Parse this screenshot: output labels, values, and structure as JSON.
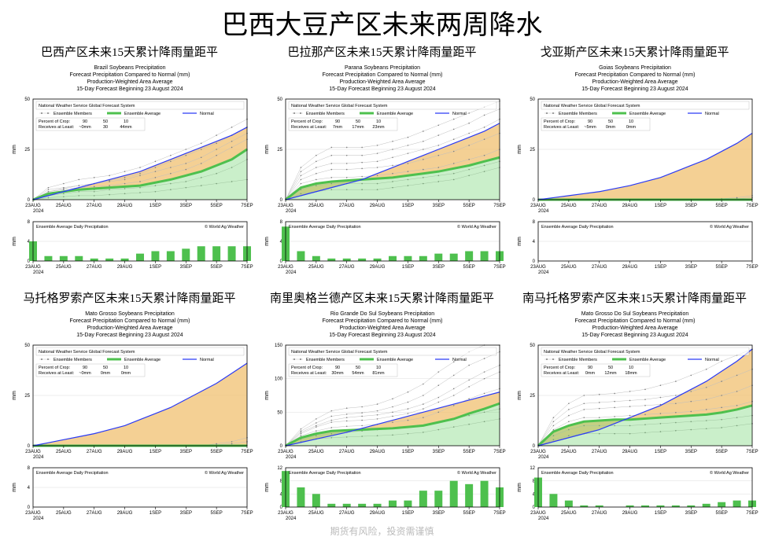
{
  "main_title": "巴西大豆产区未来两周降水",
  "watermark": "期货有风险，投资需谨慎",
  "x_ticks": [
    "23AUG",
    "25AUG",
    "27AUG",
    "29AUG",
    "1SEP",
    "3SEP",
    "5SEP",
    "7SEP"
  ],
  "x_year": "2024",
  "colors": {
    "ens": "#bfbfbf",
    "avg": "#4ec04e",
    "norm": "#2a3af5",
    "anom": "#f0c070",
    "bar": "#4ec04e"
  },
  "legend": {
    "source": "National Weather Service Global Forecast System",
    "members": "Ensemble Members",
    "avg": "Ensemble Average",
    "norm": "Normal",
    "pct_hdr": "Percent of Crop:",
    "rec_hdr": "Receives at Least:"
  },
  "daily_label": "Ensemble Average Daily Precipitation",
  "credit": "© World Ag Weather",
  "panels": [
    {
      "cn": "巴西产区未来15天累计降雨量距平",
      "hdr": [
        "Brazil Soybeans Precipitation",
        "Forecast Precipitation Compared to Normal (mm)",
        "Production-Weighted Area Average",
        "15-Day Forecast Beginning 23 August 2024"
      ],
      "ymax": 50,
      "ystep": 25,
      "norm": [
        0,
        2,
        4,
        6,
        8,
        10,
        12,
        14,
        17,
        20,
        23,
        26,
        29,
        32,
        36
      ],
      "avg": [
        0,
        3,
        4,
        5,
        5.5,
        6,
        6.5,
        7,
        8.5,
        10,
        12,
        14,
        17,
        20,
        25
      ],
      "ens": [
        [
          0,
          1,
          1.5,
          2,
          2,
          2.5,
          3,
          3.5,
          4,
          5,
          6,
          7,
          8,
          9,
          10
        ],
        [
          0,
          2,
          3,
          4,
          4,
          5,
          5.5,
          6,
          7,
          8,
          9,
          11,
          13,
          16,
          20
        ],
        [
          0,
          3,
          4,
          5,
          5,
          6,
          6.5,
          7,
          8.5,
          10,
          12,
          14,
          17,
          20,
          25
        ],
        [
          0,
          4,
          5,
          6,
          6.5,
          7,
          8,
          9,
          11,
          13,
          15,
          18,
          22,
          26,
          30
        ],
        [
          0,
          5,
          6,
          7,
          8,
          9,
          10,
          12,
          14,
          16,
          18,
          21,
          25,
          29,
          33
        ],
        [
          0,
          4,
          5.5,
          7,
          8,
          9.5,
          11,
          13,
          16,
          19,
          22,
          25,
          28,
          32,
          36
        ],
        [
          0,
          6,
          8,
          10,
          11,
          12,
          14,
          16,
          19,
          22,
          25,
          28,
          32,
          36,
          40
        ]
      ],
      "pct": [
        "90",
        "50",
        "10"
      ],
      "rec": [
        "~0mm",
        "30",
        "44mm"
      ],
      "daily_max": 8,
      "daily": [
        4,
        1,
        1,
        1,
        0.5,
        0.5,
        0.5,
        1.5,
        2,
        2,
        2.5,
        3,
        3,
        3,
        3
      ]
    },
    {
      "cn": "巴拉那产区未来15天累计降雨量距平",
      "hdr": [
        "Parana Soybeans Precipitation",
        "Forecast Precipitation Compared to Normal (mm)",
        "Production-Weighted Area Average",
        "15-Day Forecast Beginning 23 August 2024"
      ],
      "ymax": 50,
      "ystep": 25,
      "norm": [
        0,
        2,
        4,
        6,
        8,
        10,
        13,
        16,
        19,
        22,
        25,
        28,
        31,
        34,
        38
      ],
      "avg": [
        0,
        6,
        8,
        9,
        9.5,
        10,
        10.5,
        11,
        12,
        13,
        14,
        15.5,
        17,
        19,
        21
      ],
      "ens": [
        [
          0,
          3,
          4,
          5,
          5,
          5,
          5,
          6,
          7,
          8,
          9,
          10,
          12,
          14,
          16
        ],
        [
          0,
          5,
          7,
          8,
          8,
          8,
          8,
          9,
          10,
          11,
          12,
          13,
          15,
          17,
          19
        ],
        [
          0,
          8,
          10,
          11,
          11,
          11.5,
          12,
          13,
          14,
          15,
          16,
          18,
          20,
          22,
          25
        ],
        [
          0,
          10,
          13,
          15,
          15,
          15.5,
          16,
          17,
          18,
          20,
          22,
          24,
          27,
          30,
          33
        ],
        [
          0,
          12,
          16,
          18,
          18,
          18.5,
          19,
          21,
          23,
          25,
          27,
          30,
          33,
          36,
          40
        ],
        [
          0,
          14,
          19,
          22,
          22,
          22,
          23,
          25,
          27,
          29,
          32,
          35,
          38,
          42,
          45
        ],
        [
          0,
          16,
          22,
          26,
          26,
          26,
          27,
          29,
          31,
          34,
          37,
          40,
          43,
          46,
          49
        ]
      ],
      "pct": [
        "90",
        "50",
        "10"
      ],
      "rec": [
        "7mm",
        "17mm",
        "23mm"
      ],
      "daily_max": 8,
      "daily": [
        7,
        2,
        1,
        0.5,
        0.5,
        0.5,
        0.5,
        1,
        1,
        1,
        1.5,
        1.5,
        2,
        2,
        2
      ]
    },
    {
      "cn": "戈亚斯产区未来15天累计降雨量距平",
      "hdr": [
        "Goias Soybeans Precipitation",
        "Forecast Precipitation Compared to Normal (mm)",
        "Production-Weighted Area Average",
        "15-Day Forecast Beginning 23 August 2024"
      ],
      "ymax": 50,
      "ystep": 25,
      "norm": [
        0,
        1,
        2,
        3,
        4,
        5.5,
        7,
        9,
        11,
        14,
        17,
        20,
        24,
        28,
        33
      ],
      "avg": [
        0,
        0,
        0,
        0,
        0,
        0,
        0,
        0,
        0,
        0,
        0,
        0,
        0,
        0,
        0
      ],
      "ens": [
        [
          0,
          0,
          0,
          0,
          0,
          0,
          0,
          0,
          0,
          0,
          0,
          0,
          0,
          0,
          0
        ],
        [
          0,
          0,
          0,
          0,
          0,
          0,
          0,
          0,
          0,
          0,
          0,
          0,
          0,
          0.5,
          1
        ],
        [
          0,
          0,
          0,
          0,
          0,
          0,
          0,
          0,
          0,
          0,
          0,
          0,
          0.5,
          1,
          2
        ]
      ],
      "pct": [
        "90",
        "50",
        "10"
      ],
      "rec": [
        "~5mm",
        "0mm",
        "0mm"
      ],
      "daily_max": 8,
      "daily": [
        0,
        0,
        0,
        0,
        0,
        0,
        0,
        0,
        0,
        0,
        0,
        0,
        0,
        0,
        0
      ]
    },
    {
      "cn": "马托格罗索产区未来15天累计降雨量距平",
      "hdr": [
        "Mato Grosso Soybeans Precipitation",
        "Forecast Precipitation Compared to Normal (mm)",
        "Production-Weighted Area Average",
        "15-Day Forecast Beginning 23 August 2024"
      ],
      "ymax": 50,
      "ystep": 25,
      "norm": [
        0,
        1.5,
        3,
        4.5,
        6,
        8,
        10,
        13,
        16,
        19,
        23,
        27,
        31,
        36,
        41
      ],
      "avg": [
        0,
        0,
        0,
        0,
        0,
        0,
        0,
        0,
        0,
        0,
        0,
        0,
        0,
        0,
        0
      ],
      "ens": [
        [
          0,
          0,
          0,
          0,
          0,
          0,
          0,
          0,
          0,
          0,
          0,
          0,
          0,
          0,
          0
        ],
        [
          0,
          0,
          0,
          0,
          0,
          0,
          0,
          0,
          0,
          0,
          0,
          0,
          0.5,
          1,
          2
        ],
        [
          0,
          0,
          0,
          0,
          0,
          0,
          0,
          0,
          0,
          0,
          0,
          0,
          1,
          2,
          4
        ]
      ],
      "pct": [
        "90",
        "50",
        "10"
      ],
      "rec": [
        "~0mm",
        "0mm",
        "0mm"
      ],
      "daily_max": 8,
      "daily": [
        0,
        0,
        0,
        0,
        0,
        0,
        0,
        0,
        0,
        0,
        0,
        0,
        0,
        0,
        0
      ]
    },
    {
      "cn": "南里奥格兰德产区未来15天累计降雨量距平",
      "hdr": [
        "Rio Grande Do Sul Soybeans Precipitation",
        "Forecast Precipitation Compared to Normal (mm)",
        "Production-Weighted Area Average",
        "15-Day Forecast Beginning 23 August 2024"
      ],
      "ymax": 150,
      "ystep": 50,
      "norm": [
        0,
        5,
        10,
        15,
        20,
        26,
        32,
        38,
        44,
        50,
        56,
        62,
        68,
        74,
        80
      ],
      "avg": [
        0,
        12,
        18,
        22,
        23,
        24,
        25,
        26,
        28,
        30,
        35,
        40,
        48,
        55,
        63
      ],
      "ens": [
        [
          0,
          6,
          10,
          12,
          13,
          14,
          15,
          16,
          18,
          20,
          24,
          28,
          32,
          36,
          40
        ],
        [
          0,
          10,
          15,
          18,
          20,
          22,
          24,
          26,
          28,
          30,
          35,
          40,
          45,
          50,
          55
        ],
        [
          0,
          15,
          22,
          27,
          29,
          30,
          32,
          35,
          38,
          42,
          50,
          60,
          70,
          78,
          85
        ],
        [
          0,
          18,
          28,
          35,
          37,
          38,
          40,
          44,
          48,
          55,
          65,
          75,
          88,
          100,
          110
        ],
        [
          0,
          22,
          34,
          44,
          47,
          49,
          52,
          58,
          65,
          75,
          90,
          105,
          120,
          130,
          140
        ],
        [
          0,
          25,
          40,
          52,
          56,
          58,
          62,
          70,
          80,
          92,
          110,
          125,
          140,
          150,
          150
        ],
        [
          0,
          20,
          30,
          38,
          42,
          44,
          46,
          50,
          55,
          62,
          72,
          85,
          98,
          110,
          120
        ]
      ],
      "pct": [
        "90",
        "50",
        "10"
      ],
      "rec": [
        "30mm",
        "54mm",
        "81mm"
      ],
      "daily_max": 12,
      "daily": [
        11,
        6,
        4,
        1,
        1,
        1,
        1,
        2,
        2,
        5,
        5,
        8,
        7,
        8,
        6
      ]
    },
    {
      "cn": "南马托格罗索产区未来15天累计降雨量距平",
      "hdr": [
        "Mato Grosso Do Sul Soybeans Precipitation",
        "Forecast Precipitation Compared to Normal (mm)",
        "Production-Weighted Area Average",
        "15-Day Forecast Beginning 23 August 2024"
      ],
      "ymax": 50,
      "ystep": 25,
      "norm": [
        0,
        2,
        4,
        6,
        8,
        11,
        14,
        17,
        20,
        24,
        28,
        32,
        37,
        42,
        48
      ],
      "avg": [
        0,
        7,
        10,
        12,
        12.5,
        13,
        13,
        13.5,
        14,
        14.5,
        15,
        15.5,
        16.5,
        18,
        20
      ],
      "ens": [
        [
          0,
          3,
          5,
          6,
          6,
          6,
          6,
          6.5,
          7,
          7.5,
          8,
          8.5,
          9,
          10,
          11
        ],
        [
          0,
          5,
          8,
          10,
          10,
          10,
          10,
          10.5,
          11,
          11.5,
          12,
          12.5,
          13,
          14,
          15
        ],
        [
          0,
          8,
          12,
          14,
          14,
          14.5,
          15,
          15.5,
          16,
          16.5,
          17,
          18,
          19,
          20,
          22
        ],
        [
          0,
          10,
          15,
          18,
          18.5,
          19,
          19.5,
          20,
          20.5,
          21,
          22,
          23,
          25,
          27,
          30
        ],
        [
          0,
          12,
          18,
          21,
          21.5,
          22,
          22.5,
          23,
          24,
          25,
          27,
          29,
          32,
          35,
          38
        ],
        [
          0,
          14,
          21,
          25,
          25.5,
          26,
          27,
          28,
          30,
          32,
          35,
          38,
          42,
          45,
          48
        ]
      ],
      "pct": [
        "90",
        "50",
        "10"
      ],
      "rec": [
        "0mm",
        "12mm",
        "18mm"
      ],
      "daily_max": 12,
      "daily": [
        9,
        4,
        2,
        0.5,
        0.5,
        0,
        0.5,
        0.5,
        0.5,
        0.5,
        0.5,
        1,
        1.5,
        2,
        2
      ]
    }
  ]
}
